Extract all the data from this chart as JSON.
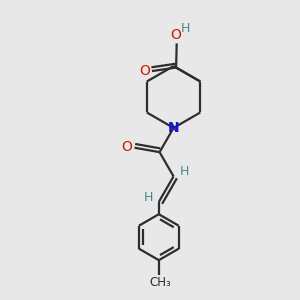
{
  "background_color": "#e8e8e8",
  "bond_color": "#2d2d2d",
  "N_color": "#1414cc",
  "O_color": "#cc1a00",
  "H_color": "#4a8888",
  "line_width": 1.6,
  "figsize": [
    3.0,
    3.0
  ],
  "dpi": 100,
  "xlim": [
    0,
    10
  ],
  "ylim": [
    0,
    10
  ]
}
